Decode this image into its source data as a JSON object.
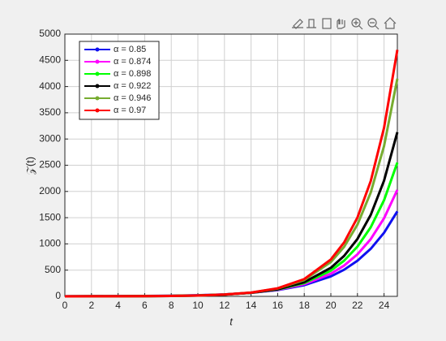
{
  "chart_data": {
    "type": "line",
    "x_label": "t",
    "y_label": "𝒵(t)",
    "x": [
      0,
      2,
      4,
      6,
      8,
      10,
      12,
      14,
      16,
      18,
      20,
      21,
      22,
      23,
      24,
      25
    ],
    "series": [
      {
        "name": "α = 0.85",
        "color": "#1010f0",
        "values": [
          1,
          2,
          4,
          7,
          12,
          21,
          37,
          67,
          119,
          213,
          380,
          508,
          679,
          907,
          1212,
          1620
        ]
      },
      {
        "name": "α = 0.874",
        "color": "#ff00ff",
        "values": [
          1,
          2,
          3,
          6,
          10,
          19,
          36,
          67,
          125,
          232,
          431,
          587,
          801,
          1092,
          1489,
          2030
        ]
      },
      {
        "name": "α = 0.898",
        "color": "#00ff00",
        "values": [
          1,
          1,
          2,
          5,
          9,
          18,
          35,
          68,
          131,
          253,
          490,
          681,
          948,
          1318,
          1833,
          2550
        ]
      },
      {
        "name": "α = 0.922",
        "color": "#000000",
        "values": [
          0,
          1,
          2,
          4,
          8,
          16,
          33,
          67,
          134,
          270,
          544,
          772,
          1095,
          1554,
          2206,
          3130
        ]
      },
      {
        "name": "α = 0.946",
        "color": "#77ac30",
        "values": [
          0,
          1,
          2,
          4,
          8,
          16,
          34,
          71,
          149,
          311,
          653,
          944,
          1368,
          1980,
          2866,
          4150
        ]
      },
      {
        "name": "α = 0.97",
        "color": "#ff0000",
        "values": [
          0,
          1,
          2,
          3,
          7,
          16,
          34,
          72,
          154,
          329,
          703,
          1028,
          1503,
          2198,
          3214,
          4700
        ]
      }
    ],
    "xlim": [
      0,
      25
    ],
    "xticks": [
      0,
      2,
      4,
      6,
      8,
      10,
      12,
      14,
      16,
      18,
      20,
      22,
      24
    ],
    "ylim": [
      0,
      5000
    ],
    "yticks": [
      0,
      500,
      1000,
      1500,
      2000,
      2500,
      3000,
      3500,
      4000,
      4500,
      5000
    ],
    "grid": true
  }
}
